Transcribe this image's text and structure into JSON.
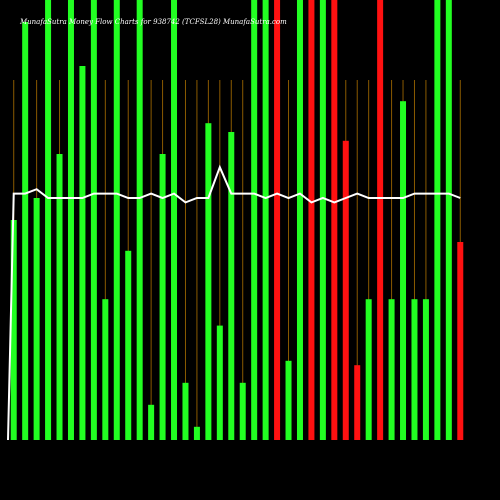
{
  "chart_data": {
    "type": "bar",
    "title": "MunafaSutra  Money Flow  Charts for 938742                    (TCFSL28)  MunafaSutra.com",
    "xlabel": "",
    "ylabel": "",
    "ylim": [
      0,
      100
    ],
    "grid": {
      "vertical": true,
      "color": "#8a5a00"
    },
    "colors": {
      "up": "#22ff22",
      "down": "#ff1111",
      "line": "#ffffff",
      "background": "#000000",
      "grid": "#8a5a00"
    },
    "categories": [
      "",
      "",
      "",
      "",
      "",
      "",
      "",
      "",
      "",
      "",
      "",
      "",
      "",
      "",
      "",
      "",
      "",
      "",
      "",
      "",
      "",
      "",
      "",
      "",
      "",
      "",
      "",
      "",
      "",
      "",
      "",
      "",
      "",
      "",
      "",
      "",
      "",
      "",
      "",
      ""
    ],
    "values": [
      50,
      95,
      55,
      100,
      65,
      100,
      85,
      100,
      32,
      100,
      43,
      100,
      8,
      65,
      100,
      13,
      3,
      72,
      26,
      70,
      13,
      100,
      100,
      100,
      18,
      100,
      100,
      100,
      100,
      68,
      17,
      32,
      100,
      32,
      77,
      32,
      32,
      100,
      100,
      45
    ],
    "direction": [
      "up",
      "up",
      "up",
      "up",
      "up",
      "up",
      "up",
      "up",
      "up",
      "up",
      "up",
      "up",
      "up",
      "up",
      "up",
      "up",
      "up",
      "up",
      "up",
      "up",
      "up",
      "up",
      "up",
      "red",
      "up",
      "up",
      "red",
      "up",
      "red",
      "red",
      "red",
      "up",
      "red",
      "up",
      "up",
      "up",
      "up",
      "up",
      "up",
      "red"
    ],
    "line": [
      56,
      56,
      57,
      55,
      55,
      55,
      55,
      56,
      56,
      56,
      55,
      55,
      56,
      55,
      56,
      54,
      55,
      55,
      62,
      56,
      56,
      56,
      55,
      56,
      55,
      56,
      54,
      55,
      54,
      55,
      56,
      55,
      55,
      55,
      55,
      56,
      56,
      56,
      56,
      55
    ],
    "markers": [
      {
        "index": 3,
        "text": ""
      },
      {
        "index": 5,
        "text": ""
      },
      {
        "index": 14,
        "text": ""
      },
      {
        "index": 28,
        "text": ""
      }
    ]
  }
}
